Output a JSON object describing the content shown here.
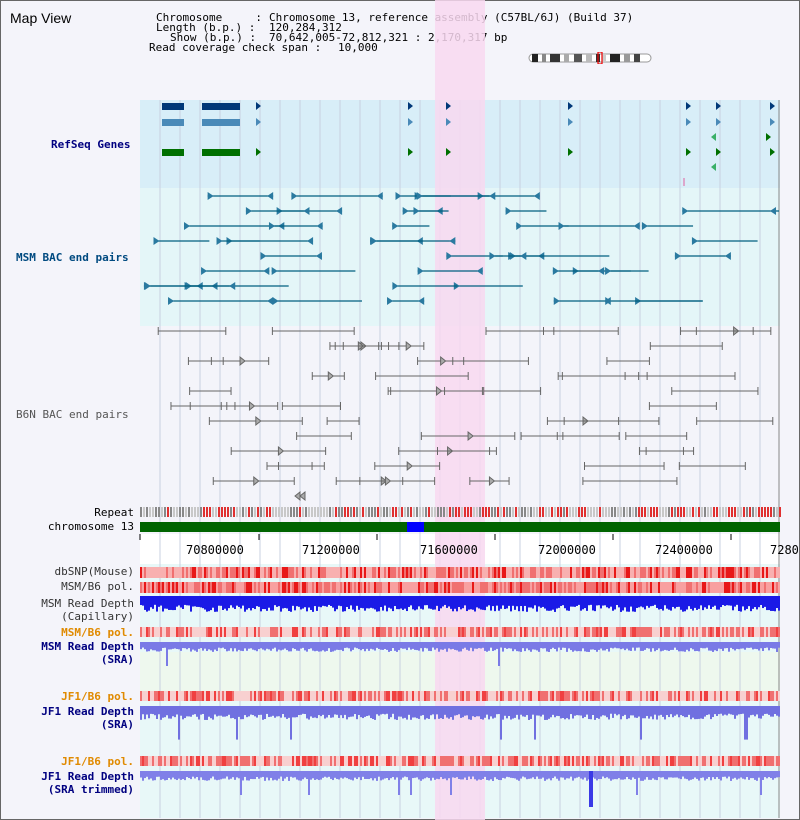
{
  "title": "Map View",
  "info": {
    "chromosome_label": "Chromosome     :",
    "chromosome_value": "Chromosome 13, reference assembly (C57BL/6J) (Build 37)",
    "length_label": "Length (b.p.) :",
    "length_value": "120,284,312",
    "show_label": "Show (b.p.) :",
    "show_value": "70,642,005-72,812,321 : 2,170,317 bp",
    "span_label": "Read coverage check span :",
    "span_value": "10,000"
  },
  "tracks": {
    "refseq": "RefSeq Genes",
    "msm_bac": "MSM BAC end pairs",
    "b6n_bac": "B6N BAC end pairs",
    "repeat": "Repeat",
    "chromosome": "chromosome 13",
    "dbsnp": "dbSNP(Mouse)",
    "msm_b6_pol_1": "MSM/B6 pol.",
    "msm_read_depth_cap_1": "MSM Read Depth",
    "msm_read_depth_cap_2": "(Capillary)",
    "msm_b6_pol_2": "MSM/B6 pol.",
    "msm_read_depth_sra_1": "MSM Read Depth",
    "msm_read_depth_sra_2": "(SRA)",
    "jf1_b6_pol_1": "JF1/B6 pol.",
    "jf1_read_depth_sra_1": "JF1 Read Depth",
    "jf1_read_depth_sra_2": "(SRA)",
    "jf1_b6_pol_2": "JF1/B6 pol.",
    "jf1_read_depth_trim_1": "JF1 Read Depth",
    "jf1_read_depth_trim_2": "(SRA trimmed)"
  },
  "axis": {
    "ticks": [
      "70800000",
      "71200000",
      "71600000",
      "72000000",
      "72400000",
      "7280"
    ]
  },
  "colors": {
    "refseq_bg": "#d8eef8",
    "msm_bg": "#e4f6f8",
    "highlight": "#f8d8f0",
    "chromosome": "#006400",
    "chromosome_focus": "#0000ff",
    "msm_label": "#004a80",
    "orange_label": "#e08a00",
    "blue_label": "#000080"
  }
}
